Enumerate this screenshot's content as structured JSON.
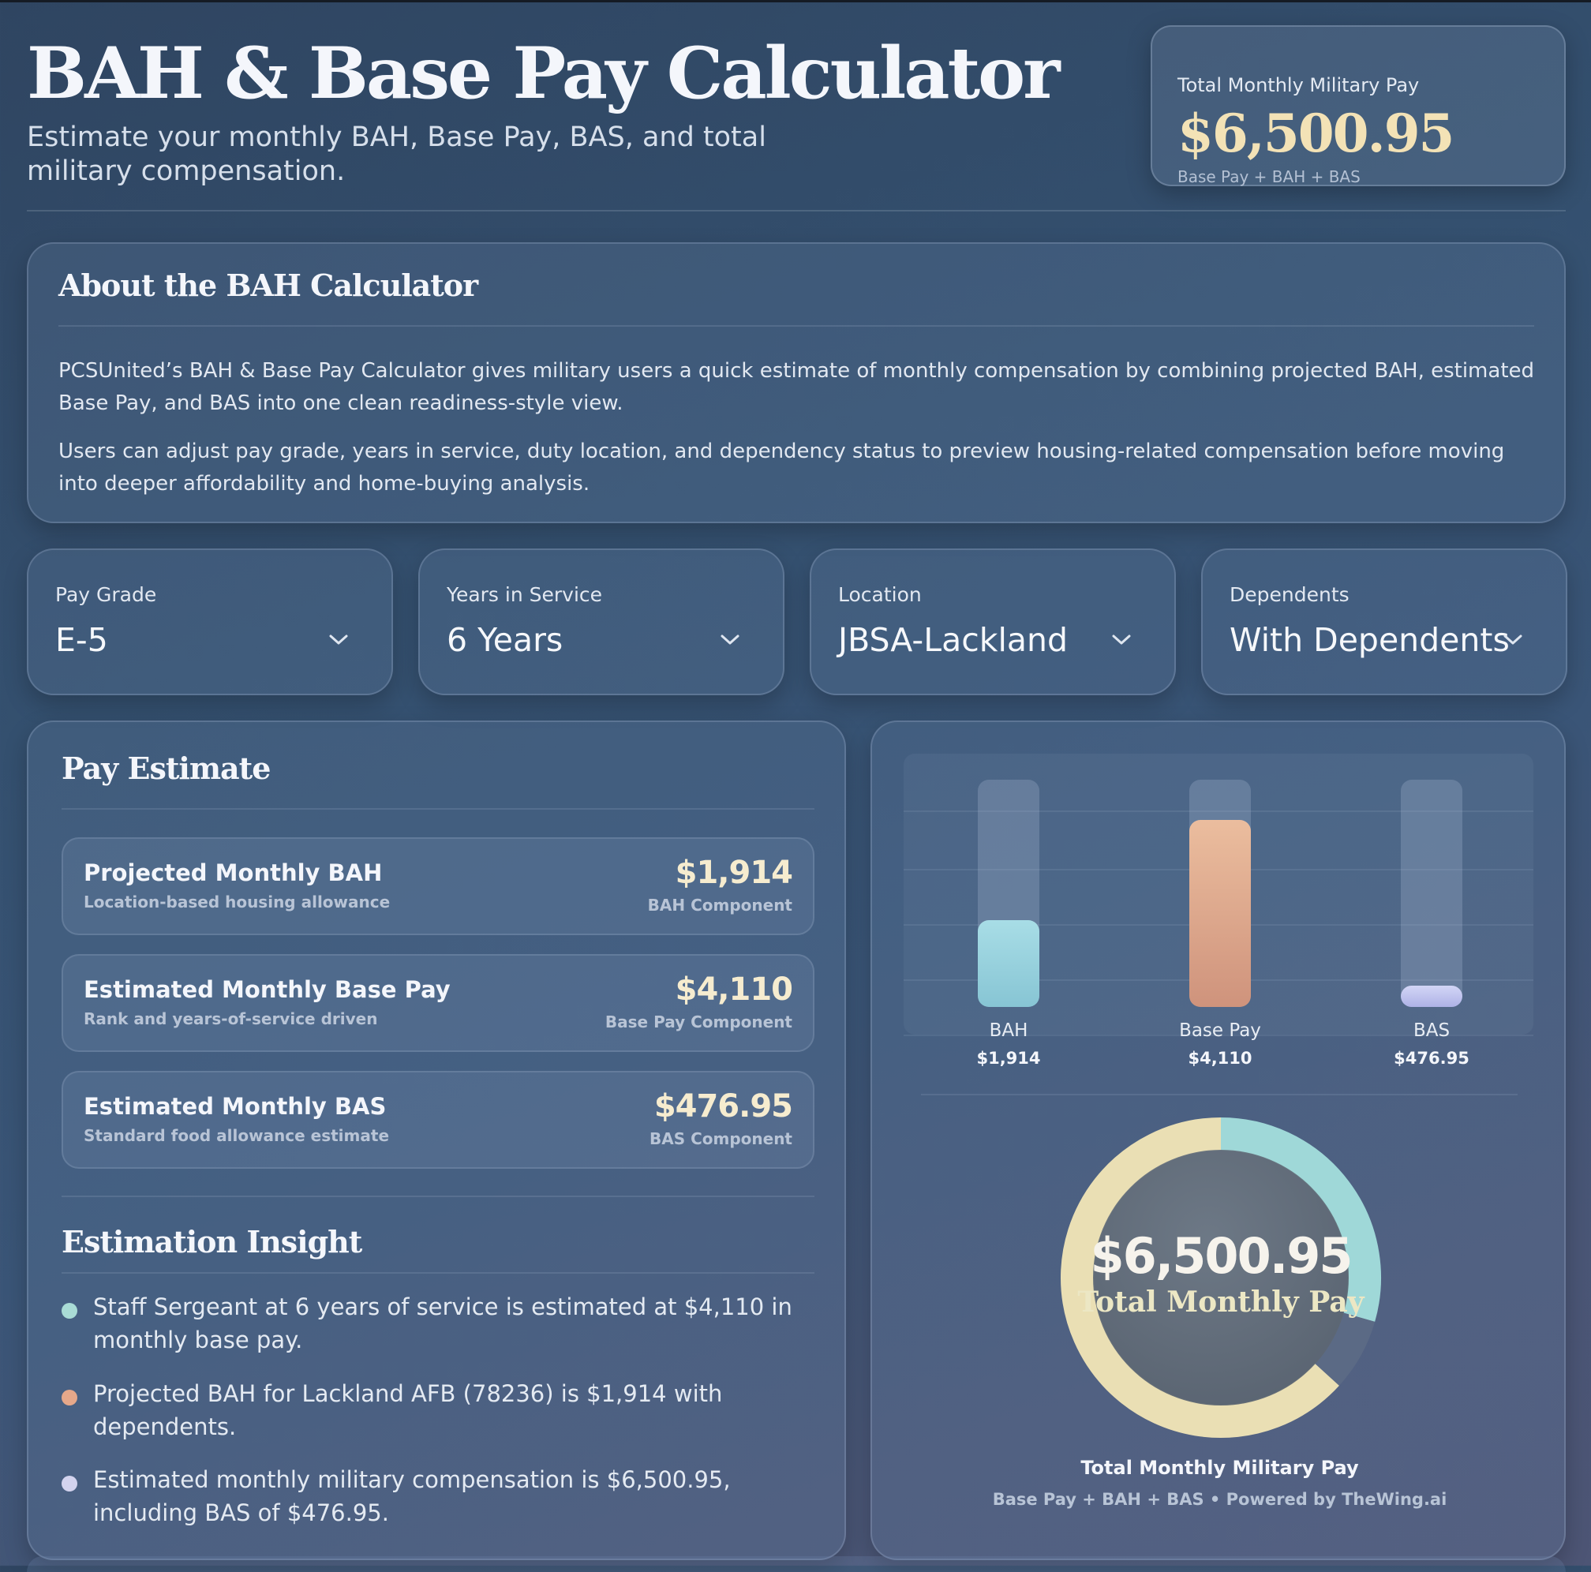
{
  "header": {
    "title": "BAH & Base Pay Calculator",
    "subtitle": "Estimate your monthly BAH, Base Pay, BAS, and total military compensation."
  },
  "total_card": {
    "label": "Total Monthly Military Pay",
    "value": "$6,500.95",
    "sub": "Base Pay + BAH + BAS"
  },
  "about": {
    "title": "About the BAH Calculator",
    "p1": "PCSUnited’s BAH & Base Pay Calculator gives military users a quick estimate of monthly compensation by combining projected BAH, estimated Base Pay, and BAS into one clean readiness-style view.",
    "p2": "Users can adjust pay grade, years in service, duty location, and dependency status to preview housing-related compensation before moving into deeper affordability and home-buying analysis."
  },
  "selectors": [
    {
      "label": "Pay Grade",
      "value": "E-5"
    },
    {
      "label": "Years in Service",
      "value": "6 Years"
    },
    {
      "label": "Location",
      "value": "JBSA-Lackland"
    },
    {
      "label": "Dependents",
      "value": "With Dependents"
    }
  ],
  "pay_estimate": {
    "title": "Pay Estimate",
    "rows": [
      {
        "title": "Projected Monthly BAH",
        "desc": "Location-based housing allowance",
        "value": "$1,914",
        "component": "BAH Component"
      },
      {
        "title": "Estimated Monthly Base Pay",
        "desc": "Rank and years-of-service driven",
        "value": "$4,110",
        "component": "Base Pay Component"
      },
      {
        "title": "Estimated Monthly BAS",
        "desc": "Standard food allowance estimate",
        "value": "$476.95",
        "component": "BAS Component"
      }
    ],
    "insight_title": "Estimation Insight",
    "insights": [
      "Staff Sergeant at 6 years of service is estimated at $4,110 in monthly base pay.",
      "Projected BAH for Lackland AFB (78236) is $1,914 with dependents.",
      "Estimated monthly military compensation is $6,500.95, including BAS of $476.95."
    ]
  },
  "colors": {
    "bah": "#9fd6e0",
    "base_pay": "#e3ae92",
    "bas": "#c7cbef",
    "accent_gold": "#f3e2b6"
  },
  "chart_data": [
    {
      "type": "bar",
      "categories": [
        "BAH",
        "Base Pay",
        "BAS"
      ],
      "values": [
        1914,
        4110,
        476.95
      ],
      "value_labels": [
        "$1,914",
        "$4,110",
        "$476.95"
      ],
      "ylim": [
        0,
        5000
      ],
      "grid": true
    },
    {
      "type": "pie",
      "categories": [
        "BAH",
        "BAS",
        "Base Pay"
      ],
      "values": [
        1914,
        476.95,
        4110
      ],
      "center_value": "$6,500.95",
      "center_label": "Total Monthly Pay",
      "caption": "Total Monthly Military Pay",
      "sub": "Base Pay + BAH + BAS • Powered by TheWing.ai"
    }
  ]
}
